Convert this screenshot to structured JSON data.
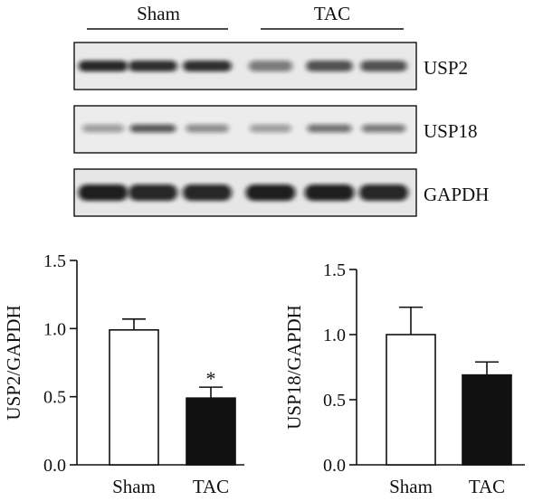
{
  "blot": {
    "groups": [
      "Sham",
      "TAC"
    ],
    "proteins": [
      "USP2",
      "USP18",
      "GAPDH"
    ],
    "lane_intensity": {
      "USP2": [
        0.85,
        0.8,
        0.8,
        0.35,
        0.6,
        0.6
      ],
      "USP18": [
        0.15,
        0.55,
        0.25,
        0.15,
        0.4,
        0.35
      ],
      "GAPDH": [
        0.9,
        0.85,
        0.85,
        0.9,
        0.9,
        0.85
      ]
    }
  },
  "chart_data": [
    {
      "type": "bar",
      "categories": [
        "Sham",
        "TAC"
      ],
      "values": [
        0.99,
        0.49
      ],
      "errors": [
        0.08,
        0.08
      ],
      "bar_colors": [
        "#ffffff",
        "#111111"
      ],
      "ylabel": "USP2/GAPDH",
      "ylim": [
        0.0,
        1.5
      ],
      "yticks": [
        "0.0",
        "0.5",
        "1.0",
        "1.5"
      ],
      "annotations": [
        "",
        "*"
      ]
    },
    {
      "type": "bar",
      "categories": [
        "Sham",
        "TAC"
      ],
      "values": [
        1.0,
        0.69
      ],
      "errors": [
        0.21,
        0.1
      ],
      "bar_colors": [
        "#ffffff",
        "#111111"
      ],
      "ylabel": "USP18/GAPDH",
      "ylim": [
        0.0,
        1.5
      ],
      "yticks": [
        "0.0",
        "0.5",
        "1.0",
        "1.5"
      ],
      "annotations": [
        "",
        ""
      ]
    }
  ]
}
